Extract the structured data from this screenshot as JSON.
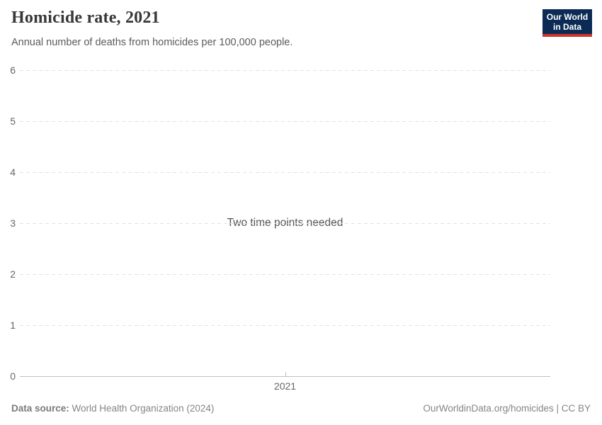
{
  "header": {
    "title": "Homicide rate, 2021",
    "subtitle": "Annual number of deaths from homicides per 100,000 people.",
    "logo": {
      "line1": "Our World",
      "line2": "in Data",
      "background_color": "#0c2b54",
      "stripe_color": "#d0342c",
      "text_color": "#ffffff"
    }
  },
  "chart_data": {
    "type": "line",
    "title": "Homicide rate, 2021",
    "subtitle": "Annual number of deaths from homicides per 100,000 people.",
    "series": [],
    "message": "Two time points needed",
    "ylim": [
      0,
      6
    ],
    "yticks": [
      0,
      1,
      2,
      3,
      4,
      5,
      6
    ],
    "xticks": [
      "2021"
    ],
    "grid": "horizontal dashed gridlines, solid baseline at 0",
    "legend": "none",
    "colors": {
      "gridline": "#e2e2e2",
      "baseline": "#bfbfbf",
      "tick_label": "#666666",
      "message_text": "#555555"
    }
  },
  "footer": {
    "source_label": "Data source:",
    "source_value": "World Health Organization (2024)",
    "attribution": "OurWorldinData.org/homicides | CC BY"
  }
}
